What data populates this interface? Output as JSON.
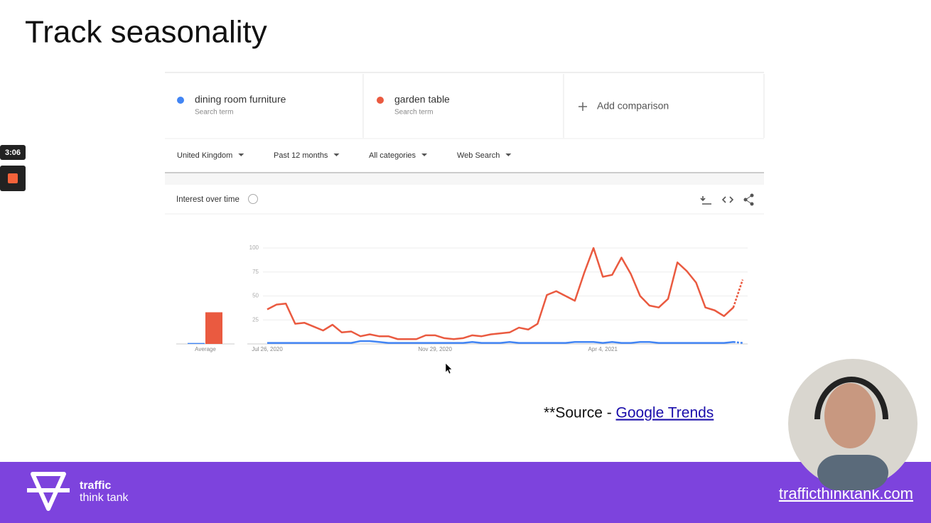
{
  "slide": {
    "title": "Track seasonality",
    "timer": "3:06",
    "source_prefix": "**Source - ",
    "source_link": "Google Trends",
    "brand_line1": "traffic",
    "brand_line2": "think tank",
    "website": "trafficthinktank.com"
  },
  "trends": {
    "terms": [
      {
        "name": "dining room furniture",
        "sub": "Search term"
      },
      {
        "name": "garden table",
        "sub": "Search term"
      }
    ],
    "add_comparison": "Add comparison",
    "filters": [
      "United Kingdom",
      "Past 12 months",
      "All categories",
      "Web Search"
    ],
    "section_title": "Interest over time"
  },
  "chart_data": {
    "type": "line",
    "average_label": "Average",
    "categories": [
      "Jul 26, 2020",
      null,
      null,
      null,
      null,
      null,
      null,
      null,
      null,
      null,
      null,
      null,
      null,
      null,
      null,
      null,
      null,
      null,
      "Nov 29, 2020",
      null,
      null,
      null,
      null,
      null,
      null,
      null,
      null,
      null,
      null,
      null,
      null,
      null,
      null,
      null,
      null,
      null,
      "Apr 4, 2021",
      null,
      null,
      null,
      null,
      null,
      null,
      null,
      null,
      null,
      null,
      null,
      null,
      null,
      null,
      null
    ],
    "series": [
      {
        "name": "dining room furniture",
        "color": "#4285f4",
        "average": 1,
        "values": [
          1,
          1,
          1,
          1,
          1,
          1,
          1,
          1,
          1,
          1,
          3,
          3,
          2,
          1,
          1,
          1,
          1,
          1,
          1,
          1,
          1,
          1,
          2,
          1,
          1,
          1,
          2,
          1,
          1,
          1,
          1,
          1,
          1,
          2,
          2,
          2,
          1,
          2,
          1,
          1,
          2,
          2,
          1,
          1,
          1,
          1,
          1,
          1,
          1,
          1,
          2,
          1
        ]
      },
      {
        "name": "garden table",
        "color": "#ea5a40",
        "average": 33,
        "values": [
          36,
          41,
          42,
          21,
          22,
          18,
          14,
          20,
          12,
          13,
          8,
          10,
          8,
          8,
          5,
          5,
          5,
          9,
          9,
          6,
          5,
          6,
          9,
          8,
          10,
          11,
          12,
          17,
          15,
          21,
          51,
          55,
          50,
          45,
          74,
          100,
          70,
          72,
          90,
          73,
          50,
          40,
          38,
          47,
          85,
          76,
          64,
          38,
          35,
          29,
          38,
          67
        ]
      }
    ],
    "partial_last_point": true,
    "ylim": [
      0,
      100
    ],
    "yticks": [
      25,
      50,
      75,
      100
    ],
    "grid": true
  }
}
